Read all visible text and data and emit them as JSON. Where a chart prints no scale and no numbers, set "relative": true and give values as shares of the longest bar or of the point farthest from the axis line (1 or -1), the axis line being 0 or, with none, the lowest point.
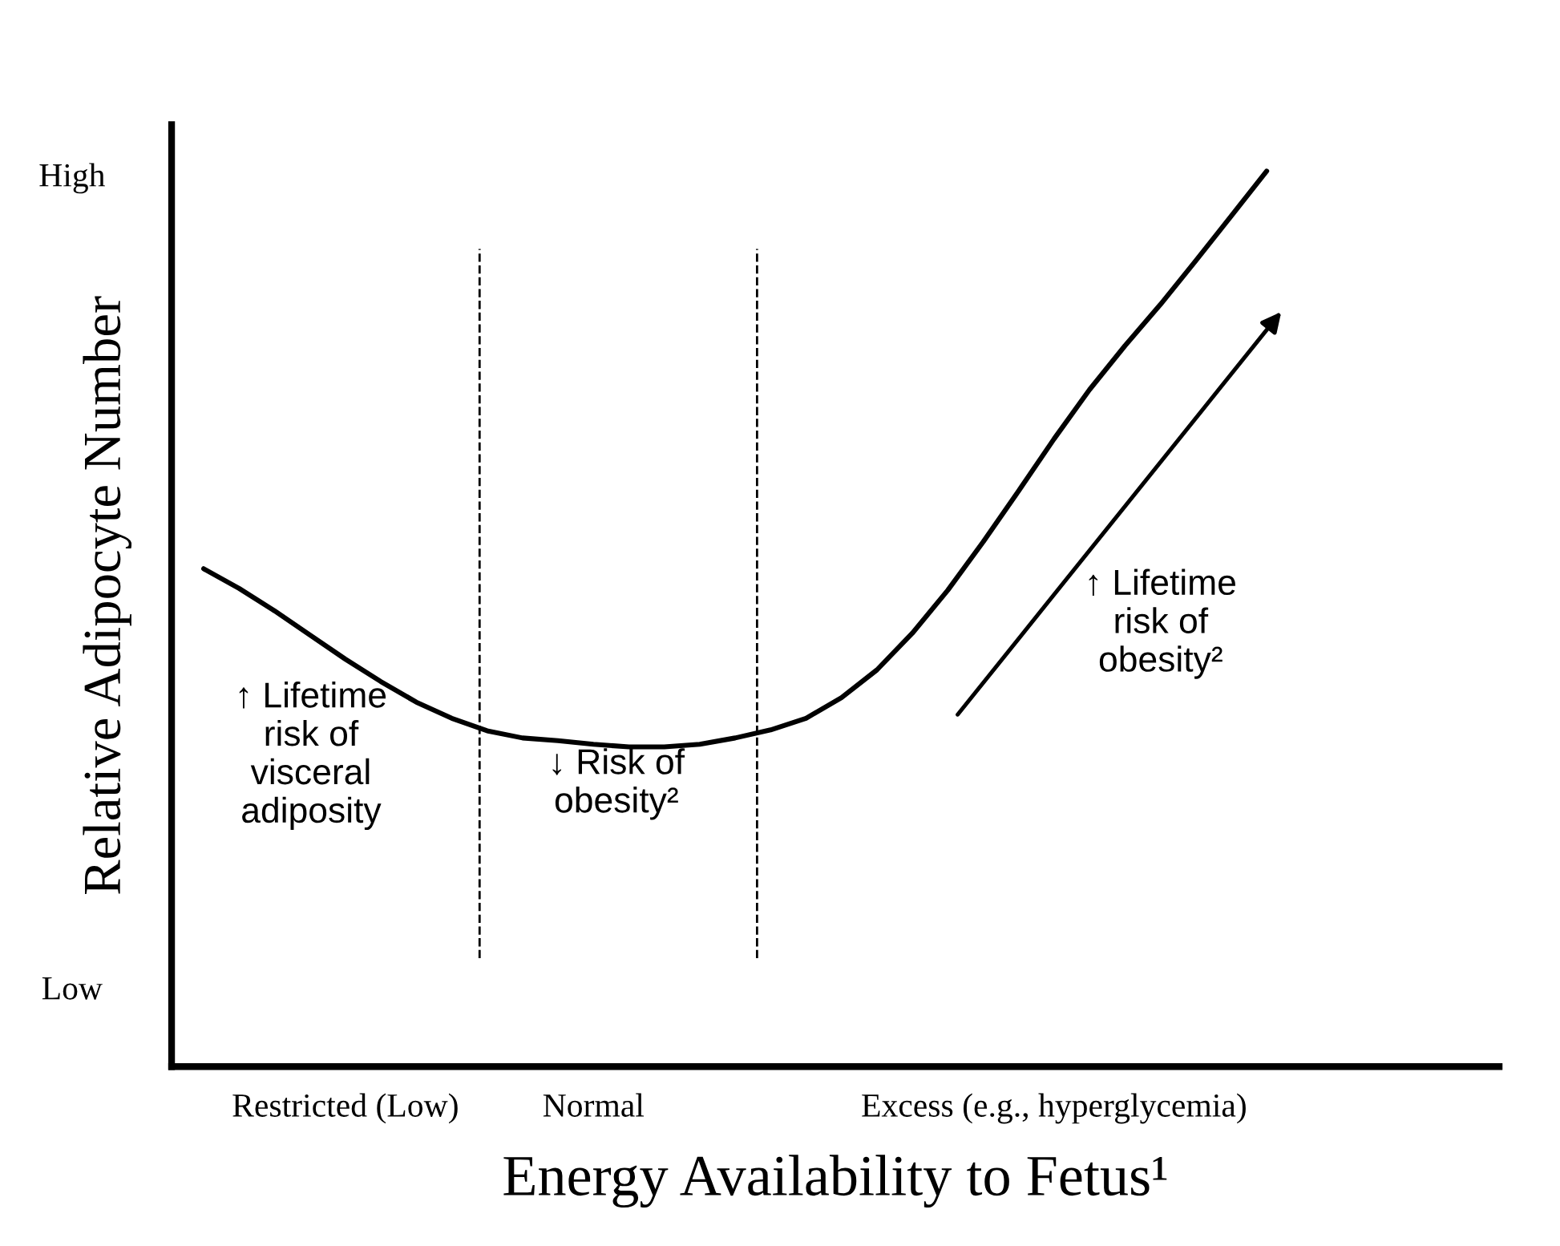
{
  "chart_data": {
    "type": "line",
    "relative": true,
    "xlabel": "Energy Availability to Fetus¹",
    "ylabel": "Relative Adipocyte Number",
    "categories": [
      null,
      null,
      null,
      null,
      "Restricted (Low)",
      null,
      null,
      null,
      null,
      null,
      null,
      "Normal",
      null,
      null,
      null,
      null,
      null,
      null,
      null,
      null,
      null,
      null,
      null,
      null,
      "Excess (e.g., hyperglycemia)",
      null,
      null,
      null,
      null,
      null,
      null
    ],
    "series": [
      {
        "color": "#000000",
        "values": [
          0.556,
          0.534,
          0.509,
          0.482,
          0.455,
          0.43,
          0.407,
          0.389,
          0.375,
          0.367,
          0.364,
          0.36,
          0.357,
          0.357,
          0.36,
          0.367,
          0.376,
          0.389,
          0.412,
          0.443,
          0.484,
          0.532,
          0.586,
          0.643,
          0.701,
          0.756,
          0.805,
          0.851,
          0.9,
          0.95,
          1.0
        ]
      }
    ],
    "annotations": [
      "High",
      "Low",
      "↑ Lifetime\nrisk of\nvisceral\nadiposity",
      "↓ Risk of\nobesity²",
      "↑ Lifetime\nrisk of\nobesity²"
    ],
    "marker": "none",
    "line_style": "solid"
  }
}
